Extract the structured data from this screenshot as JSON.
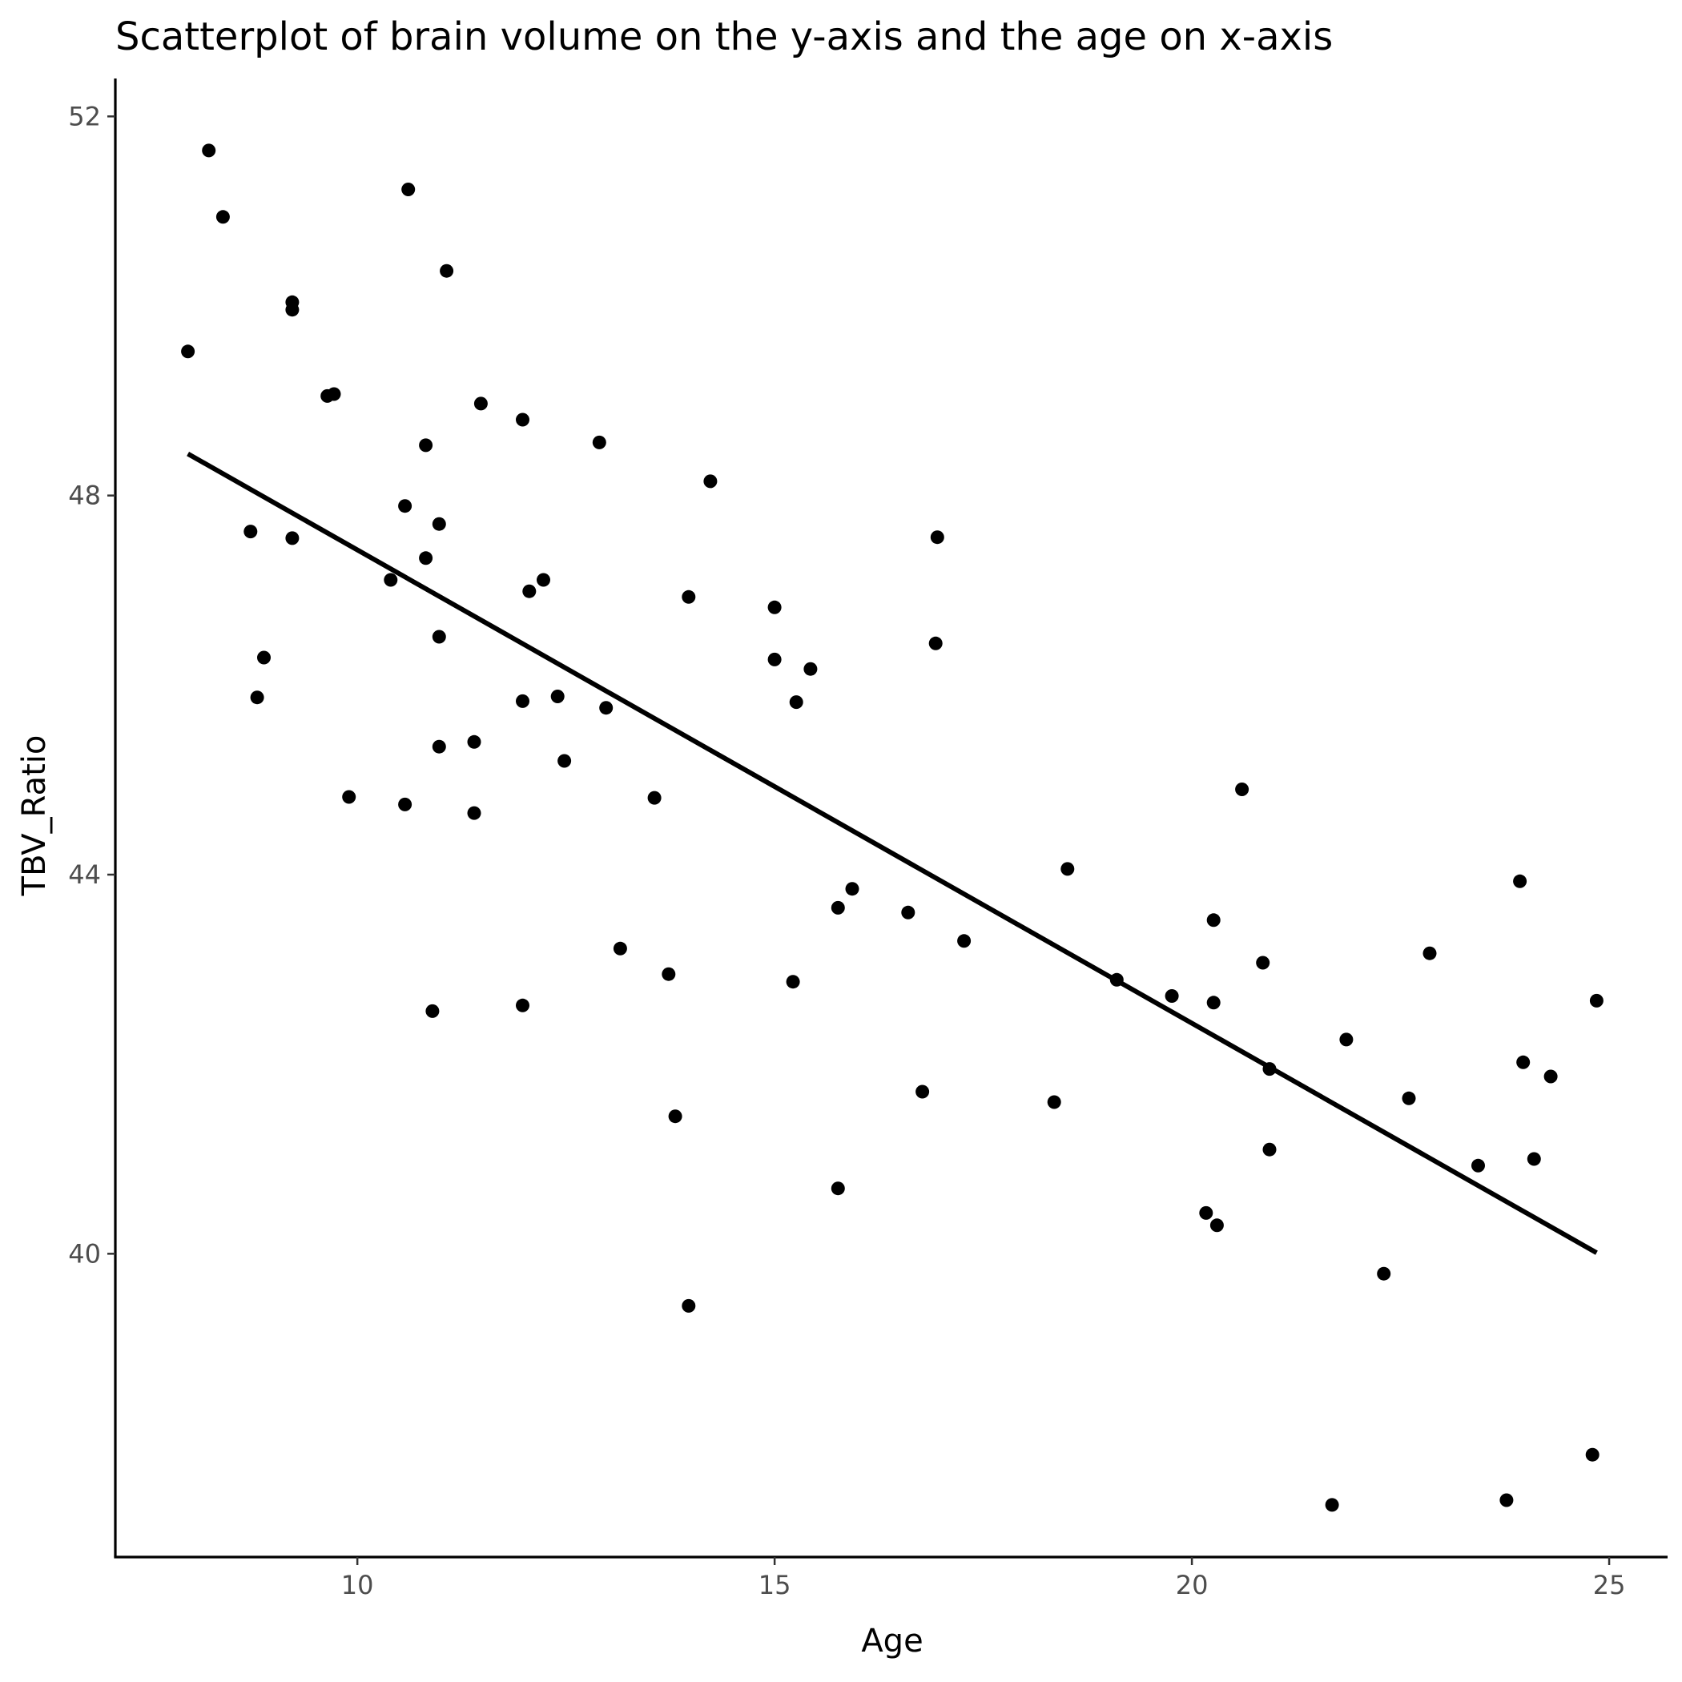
{
  "chart_data": {
    "type": "scatter",
    "title": "Scatterplot of brain volume on the y-axis and the age on x-axis",
    "xlabel": "Age",
    "ylabel": "TBV_Ratio",
    "xlim": [
      7.1,
      25.7
    ],
    "ylim": [
      36.8,
      52.4
    ],
    "xticks": [
      10,
      15,
      20,
      25
    ],
    "yticks": [
      40,
      44,
      48,
      52
    ],
    "grid": false,
    "legend": "none",
    "point_color": "#000000",
    "line_color": "#000000",
    "points": [
      [
        7.97,
        49.52
      ],
      [
        8.22,
        51.64
      ],
      [
        8.39,
        50.94
      ],
      [
        8.72,
        47.62
      ],
      [
        8.8,
        45.87
      ],
      [
        8.88,
        46.29
      ],
      [
        9.22,
        47.55
      ],
      [
        9.22,
        49.96
      ],
      [
        9.22,
        50.04
      ],
      [
        9.64,
        49.05
      ],
      [
        9.72,
        49.07
      ],
      [
        9.9,
        44.82
      ],
      [
        10.4,
        47.11
      ],
      [
        10.57,
        47.89
      ],
      [
        10.57,
        44.74
      ],
      [
        10.61,
        51.23
      ],
      [
        10.82,
        48.53
      ],
      [
        10.82,
        47.34
      ],
      [
        10.9,
        42.56
      ],
      [
        10.98,
        47.7
      ],
      [
        10.98,
        46.51
      ],
      [
        10.98,
        45.35
      ],
      [
        11.07,
        50.37
      ],
      [
        11.4,
        45.4
      ],
      [
        11.4,
        44.65
      ],
      [
        11.48,
        48.97
      ],
      [
        11.98,
        48.8
      ],
      [
        11.98,
        45.83
      ],
      [
        11.98,
        42.62
      ],
      [
        12.06,
        46.99
      ],
      [
        12.23,
        47.11
      ],
      [
        12.4,
        45.88
      ],
      [
        12.48,
        45.2
      ],
      [
        12.9,
        48.56
      ],
      [
        12.98,
        45.76
      ],
      [
        13.15,
        43.22
      ],
      [
        13.56,
        44.81
      ],
      [
        13.73,
        42.95
      ],
      [
        13.81,
        41.45
      ],
      [
        13.97,
        46.93
      ],
      [
        13.97,
        39.45
      ],
      [
        14.23,
        48.15
      ],
      [
        15.0,
        46.82
      ],
      [
        15.0,
        46.27
      ],
      [
        15.22,
        42.87
      ],
      [
        15.26,
        45.82
      ],
      [
        15.43,
        46.17
      ],
      [
        15.76,
        43.65
      ],
      [
        15.76,
        40.69
      ],
      [
        15.93,
        43.85
      ],
      [
        16.6,
        43.6
      ],
      [
        16.77,
        41.71
      ],
      [
        16.93,
        46.44
      ],
      [
        16.95,
        47.56
      ],
      [
        17.27,
        43.3
      ],
      [
        18.35,
        41.6
      ],
      [
        18.51,
        44.06
      ],
      [
        19.1,
        42.89
      ],
      [
        19.76,
        42.72
      ],
      [
        20.17,
        40.43
      ],
      [
        20.26,
        43.52
      ],
      [
        20.26,
        42.65
      ],
      [
        20.3,
        40.3
      ],
      [
        20.6,
        44.9
      ],
      [
        20.85,
        43.07
      ],
      [
        20.93,
        41.95
      ],
      [
        20.93,
        41.1
      ],
      [
        21.68,
        37.35
      ],
      [
        21.85,
        42.26
      ],
      [
        22.3,
        39.79
      ],
      [
        22.6,
        41.64
      ],
      [
        22.85,
        43.17
      ],
      [
        23.43,
        40.93
      ],
      [
        23.77,
        37.4
      ],
      [
        23.93,
        43.93
      ],
      [
        23.97,
        42.02
      ],
      [
        24.1,
        41.0
      ],
      [
        24.3,
        41.87
      ],
      [
        24.8,
        37.88
      ],
      [
        24.85,
        42.67
      ]
    ],
    "fit_line": {
      "x": [
        7.97,
        24.85
      ],
      "y": [
        48.44,
        40.01
      ]
    }
  }
}
